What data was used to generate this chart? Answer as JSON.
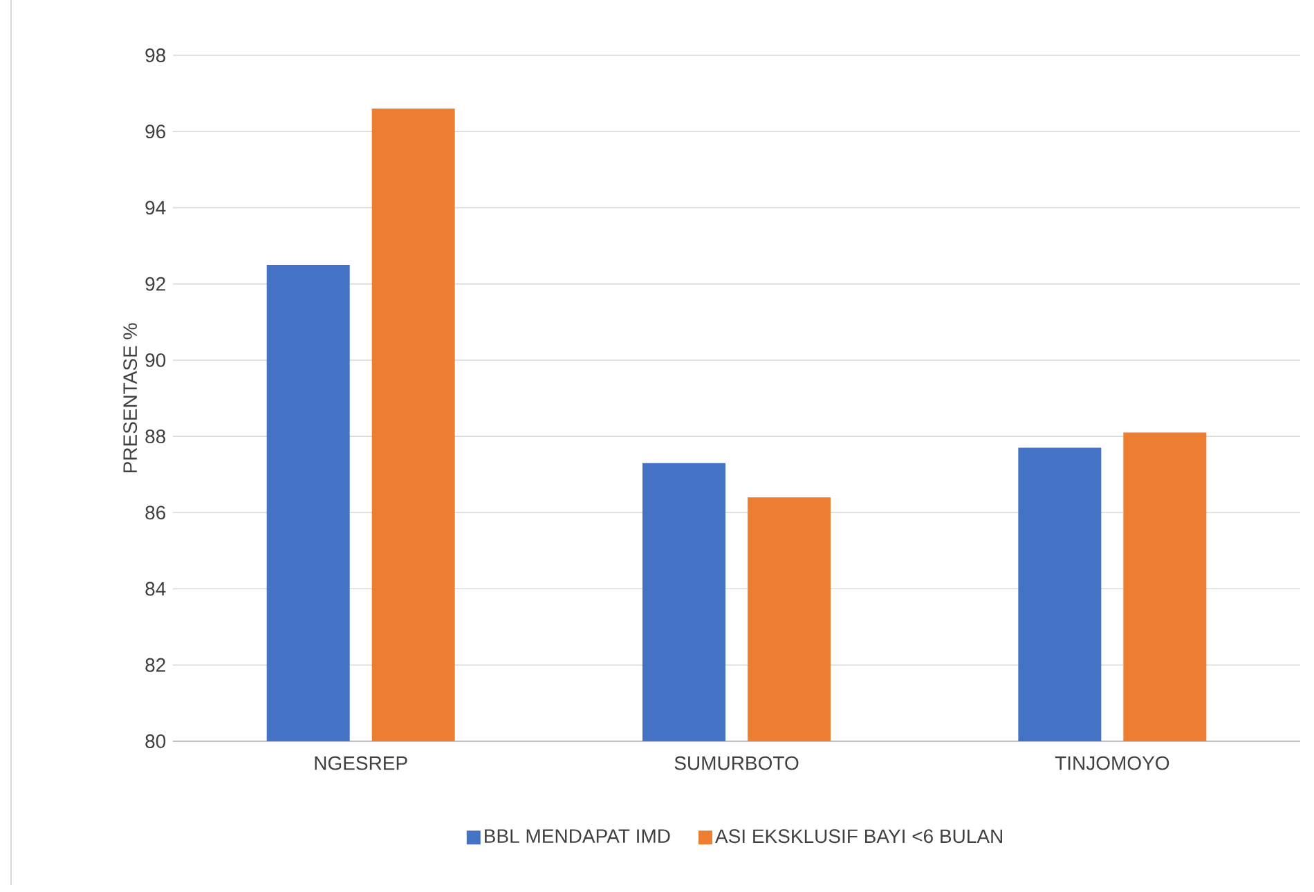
{
  "chart_data": {
    "type": "bar",
    "ylabel": "PRESENTASE %",
    "categories": [
      "NGESREP",
      "SUMURBOTO",
      "TINJOMOYO"
    ],
    "series": [
      {
        "name": "BBL MENDAPAT IMD",
        "color": "#4472c4",
        "values": [
          92.5,
          87.3,
          87.7
        ]
      },
      {
        "name": "ASI EKSKLUSIF BAYI <6 BULAN",
        "color": "#ed7d31",
        "values": [
          96.6,
          86.4,
          88.1
        ]
      }
    ],
    "ylim": [
      80,
      98
    ],
    "yticks": [
      80,
      82,
      84,
      86,
      88,
      90,
      92,
      94,
      96,
      98
    ],
    "grid": "y",
    "legend": "bottom"
  }
}
